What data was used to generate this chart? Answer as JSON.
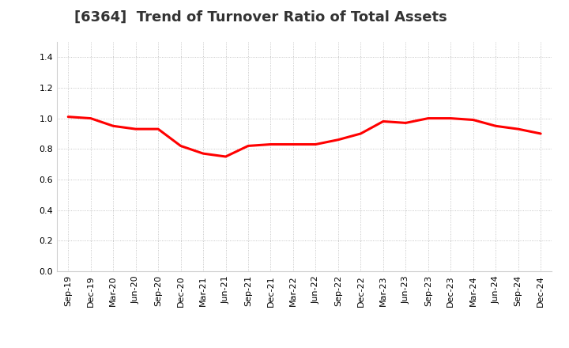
{
  "title": "[6364]  Trend of Turnover Ratio of Total Assets",
  "x_labels": [
    "Sep-19",
    "Dec-19",
    "Mar-20",
    "Jun-20",
    "Sep-20",
    "Dec-20",
    "Mar-21",
    "Jun-21",
    "Sep-21",
    "Dec-21",
    "Mar-22",
    "Jun-22",
    "Sep-22",
    "Dec-22",
    "Mar-23",
    "Jun-23",
    "Sep-23",
    "Dec-23",
    "Mar-24",
    "Jun-24",
    "Sep-24",
    "Dec-24"
  ],
  "y_values": [
    1.01,
    1.0,
    0.95,
    0.93,
    0.93,
    0.82,
    0.77,
    0.75,
    0.82,
    0.83,
    0.83,
    0.83,
    0.86,
    0.9,
    0.98,
    0.97,
    1.0,
    1.0,
    0.99,
    0.95,
    0.93,
    0.9
  ],
  "ylim": [
    0.0,
    1.5
  ],
  "yticks": [
    0.0,
    0.2,
    0.4,
    0.6,
    0.8,
    1.0,
    1.2,
    1.4
  ],
  "line_color": "#ff0000",
  "background_color": "#ffffff",
  "grid_color": "#999999",
  "title_fontsize": 13,
  "tick_fontsize": 8
}
